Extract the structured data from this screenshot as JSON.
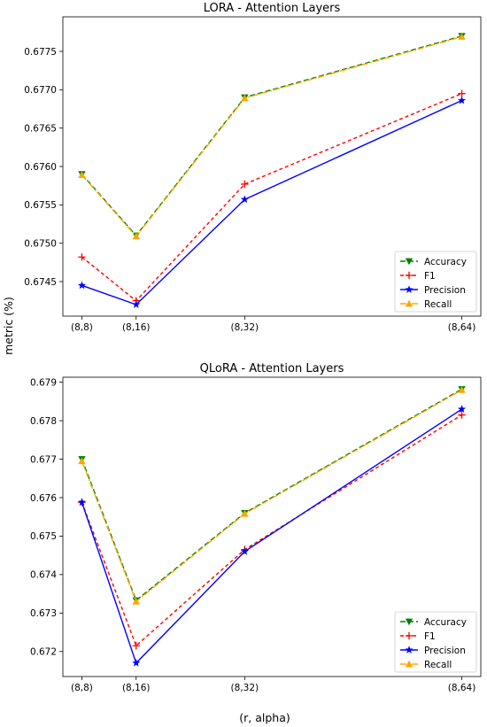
{
  "figure": {
    "ylabel": "metric (%)",
    "xlabel": "(r, alpha)"
  },
  "series_styles": [
    {
      "name": "Accuracy",
      "color": "#008000",
      "dash": "6,3",
      "marker": "tri-down"
    },
    {
      "name": "F1",
      "color": "#ff0000",
      "dash": "4,3",
      "marker": "plus"
    },
    {
      "name": "Precision",
      "color": "#0000ff",
      "dash": "",
      "marker": "star"
    },
    {
      "name": "Recall",
      "color": "#ffa500",
      "dash": "7,2,2,2",
      "marker": "tri-up"
    }
  ],
  "chart_data": [
    {
      "type": "line",
      "title": "LORA - Attention Layers",
      "x_numeric": [
        8,
        16,
        32,
        64
      ],
      "categories": [
        "(8,8)",
        "(8,16)",
        "(8,32)",
        "(8,64)"
      ],
      "ylim": [
        0.67405,
        0.67795
      ],
      "yticks": [
        0.6745,
        0.675,
        0.6755,
        0.676,
        0.6765,
        0.677,
        0.6775
      ],
      "ytick_labels": [
        "0.6745",
        "0.6750",
        "0.6755",
        "0.6760",
        "0.6765",
        "0.6770",
        "0.6775"
      ],
      "legend": "lower-right",
      "grid": false,
      "series": [
        {
          "name": "Accuracy",
          "values": [
            0.6759,
            0.6751,
            0.6769,
            0.6777
          ]
        },
        {
          "name": "F1",
          "values": [
            0.67482,
            0.67425,
            0.67577,
            0.67695
          ]
        },
        {
          "name": "Precision",
          "values": [
            0.67445,
            0.6742,
            0.67557,
            0.67686
          ]
        },
        {
          "name": "Recall",
          "values": [
            0.67589,
            0.67509,
            0.67689,
            0.67769
          ]
        }
      ]
    },
    {
      "type": "line",
      "title": "QLoRA - Attention Layers",
      "x_numeric": [
        8,
        16,
        32,
        64
      ],
      "categories": [
        "(8,8)",
        "(8,16)",
        "(8,32)",
        "(8,64)"
      ],
      "ylim": [
        0.67135,
        0.67913
      ],
      "yticks": [
        0.672,
        0.673,
        0.674,
        0.675,
        0.676,
        0.677,
        0.678,
        0.679
      ],
      "ytick_labels": [
        "0.672",
        "0.673",
        "0.674",
        "0.675",
        "0.676",
        "0.677",
        "0.678",
        "0.679"
      ],
      "legend": "lower-right",
      "grid": false,
      "series": [
        {
          "name": "Accuracy",
          "values": [
            0.677,
            0.67333,
            0.6756,
            0.67882
          ]
        },
        {
          "name": "F1",
          "values": [
            0.67588,
            0.67215,
            0.67465,
            0.67815
          ]
        },
        {
          "name": "Precision",
          "values": [
            0.67588,
            0.6717,
            0.6746,
            0.6783
          ]
        },
        {
          "name": "Recall",
          "values": [
            0.67695,
            0.6733,
            0.67558,
            0.6788
          ]
        }
      ]
    }
  ]
}
